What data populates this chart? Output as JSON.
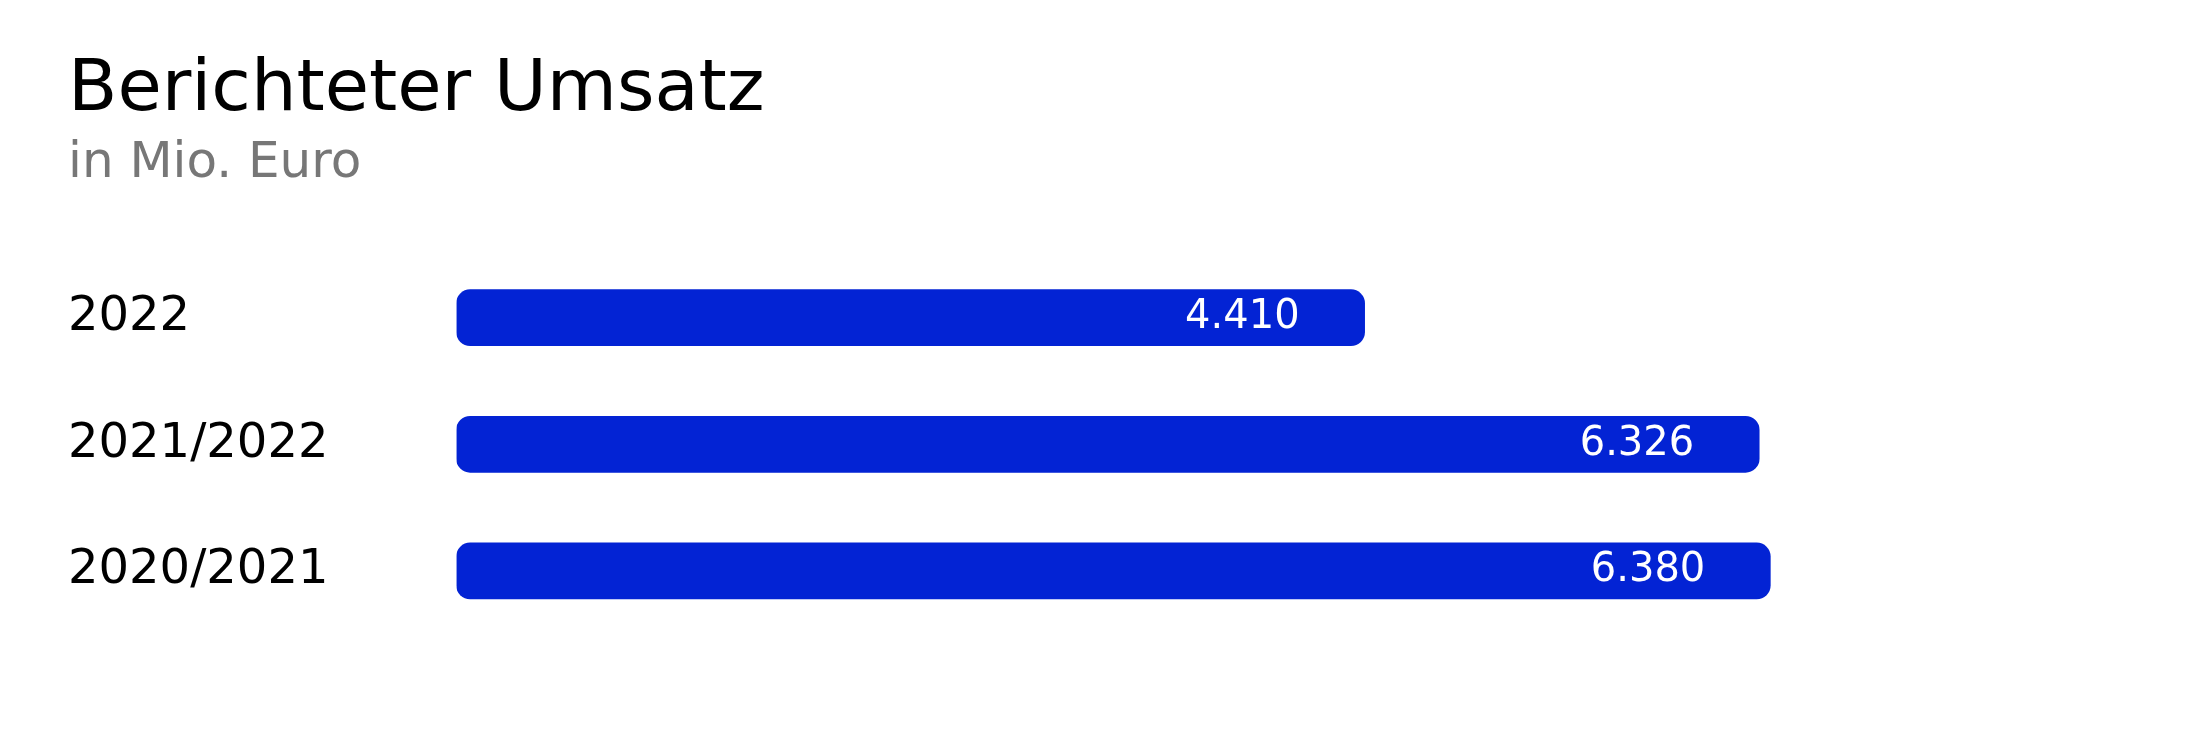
{
  "chart_data": {
    "type": "bar",
    "orientation": "horizontal",
    "title": "Berichteter Umsatz",
    "subtitle": "in Mio. Euro",
    "categories": [
      "2022",
      "2021/2022",
      "2020/2021"
    ],
    "values": [
      4410,
      6326,
      6380
    ],
    "value_labels": [
      "4.410",
      "6.326",
      "6.380"
    ],
    "color": "#0323d4",
    "legend": false
  }
}
